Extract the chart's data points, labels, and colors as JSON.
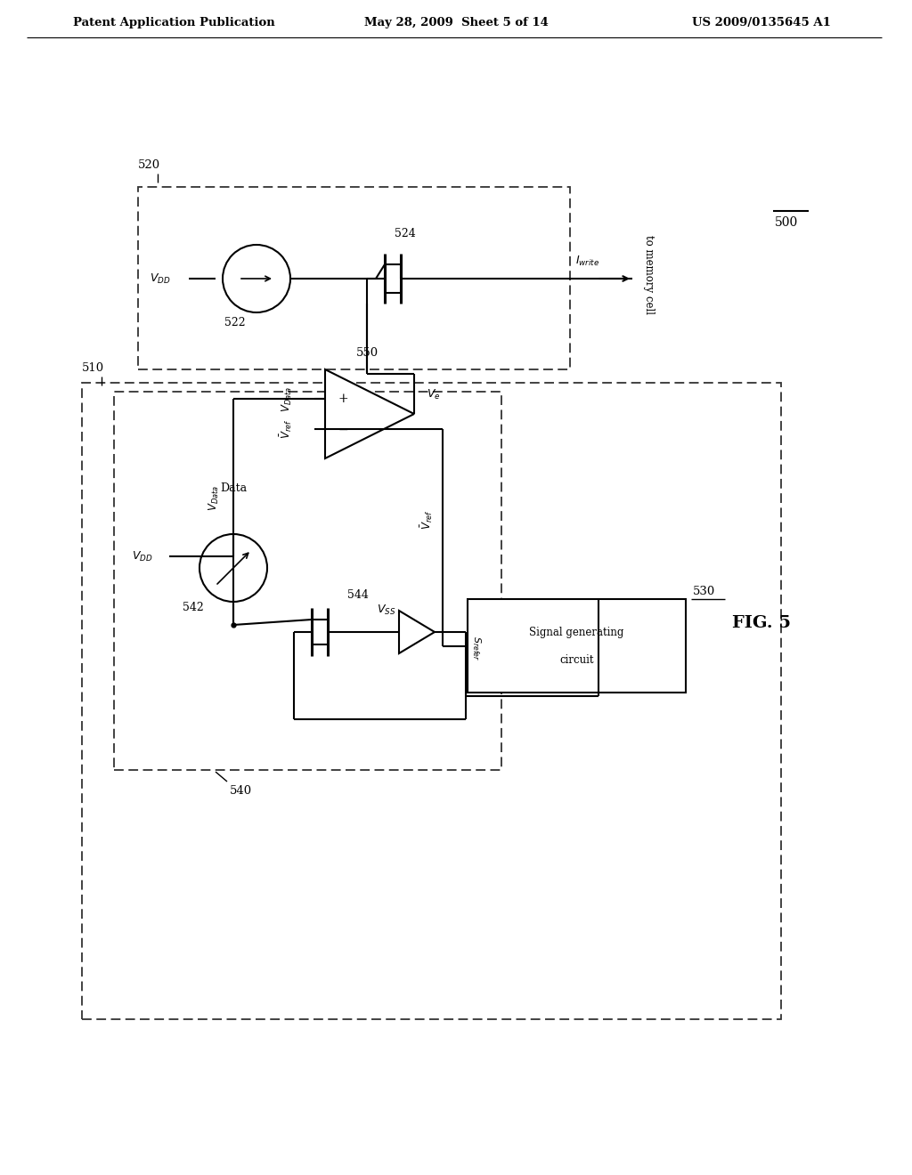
{
  "bg_color": "#ffffff",
  "header_left": "Patent Application Publication",
  "header_mid": "May 28, 2009  Sheet 5 of 14",
  "header_right": "US 2009/0135645 A1",
  "fig_label": "FIG. 5",
  "label_500": "500",
  "label_510": "510",
  "label_520": "520",
  "label_522": "522",
  "label_524": "524",
  "label_530": "530",
  "label_540": "540",
  "label_542": "542",
  "label_544": "544",
  "label_550": "550",
  "sig_gen_line1": "Signal generating",
  "sig_gen_line2": "circuit",
  "to_mem": "to memory cell"
}
